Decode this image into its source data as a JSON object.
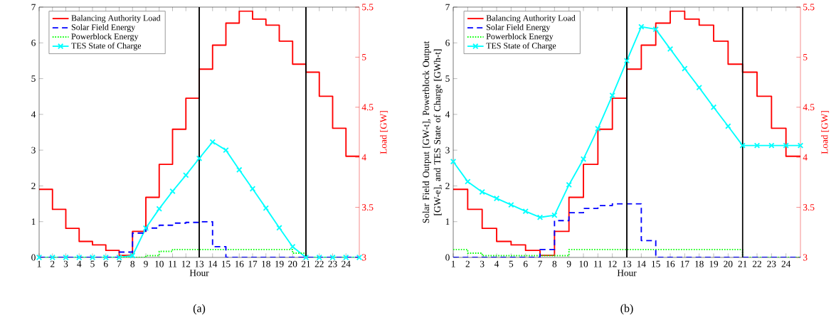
{
  "chart_data": [
    {
      "type": "step",
      "xlabel": "Hour",
      "y2label": "Load [GW]",
      "annotations": [
        "(a)"
      ],
      "x": [
        1,
        2,
        3,
        4,
        5,
        6,
        7,
        8,
        9,
        10,
        11,
        12,
        13,
        14,
        15,
        16,
        17,
        18,
        19,
        20,
        21,
        22,
        23,
        24,
        25
      ],
      "xlim": [
        1,
        25
      ],
      "xticks": [
        1,
        2,
        3,
        4,
        5,
        6,
        7,
        8,
        9,
        10,
        11,
        12,
        13,
        14,
        15,
        16,
        17,
        18,
        19,
        20,
        21,
        22,
        23,
        24
      ],
      "ylim": [
        0,
        7
      ],
      "yticks": [
        0,
        1,
        2,
        3,
        4,
        5,
        6,
        7
      ],
      "y2lim": [
        3,
        5.5
      ],
      "y2ticks": [
        3,
        3.5,
        4,
        4.5,
        5,
        5.5
      ],
      "legend": "top left",
      "ref_lines": [
        {
          "axis": "x",
          "value": 13,
          "color": "#000000"
        },
        {
          "axis": "x",
          "value": 21,
          "color": "#000000"
        }
      ],
      "series": [
        {
          "name": "Balancing Authority Load",
          "axis": "y2",
          "color": "#ff0000",
          "line_style": "solid",
          "values": [
            3.68,
            3.48,
            3.29,
            3.16,
            3.125,
            3.07,
            3.02,
            3.26,
            3.6,
            3.93,
            4.28,
            4.59,
            4.88,
            5.12,
            5.34,
            5.46,
            5.38,
            5.32,
            5.16,
            4.93,
            4.85,
            4.61,
            4.29,
            4.01,
            4.01
          ]
        },
        {
          "name": "Solar Field Energy",
          "color": "#0000ff",
          "line_style": "dashed",
          "values": [
            0,
            0,
            0,
            0,
            0,
            0,
            0.15,
            0.68,
            0.82,
            0.9,
            0.96,
            0.98,
            1.0,
            0.3,
            0,
            0,
            0,
            0,
            0,
            0,
            0,
            0,
            0,
            0,
            0
          ]
        },
        {
          "name": "Powerblock Energy",
          "color": "#00ff00",
          "line_style": "dotted",
          "values": [
            0,
            0,
            0,
            0,
            0,
            0,
            0,
            0,
            0.05,
            0.17,
            0.22,
            0.22,
            0.22,
            0.22,
            0.22,
            0.22,
            0.22,
            0.22,
            0.22,
            0.12,
            0,
            0,
            0,
            0,
            0
          ]
        },
        {
          "name": "TES State of Charge",
          "type": "line",
          "color": "#00ffff",
          "line_style": "solid",
          "marker": "cross",
          "values": [
            0,
            0,
            0,
            0,
            0,
            0,
            0,
            0.05,
            0.82,
            1.36,
            1.85,
            2.3,
            2.77,
            3.23,
            3.0,
            2.45,
            1.92,
            1.38,
            0.83,
            0.3,
            0,
            0,
            0,
            0,
            0
          ]
        }
      ]
    },
    {
      "type": "step",
      "xlabel": "Hour",
      "ylabel": "Solar Field Output [GW-t], Powerblock Output [GW-e], and TES State of Charge [GWh-t]",
      "y2label": "Load [GW]",
      "annotations": [
        "(b)"
      ],
      "x": [
        1,
        2,
        3,
        4,
        5,
        6,
        7,
        8,
        9,
        10,
        11,
        12,
        13,
        14,
        15,
        16,
        17,
        18,
        19,
        20,
        21,
        22,
        23,
        24,
        25
      ],
      "xlim": [
        1,
        25
      ],
      "xticks": [
        1,
        2,
        3,
        4,
        5,
        6,
        7,
        8,
        9,
        10,
        11,
        12,
        13,
        14,
        15,
        16,
        17,
        18,
        19,
        20,
        21,
        22,
        23,
        24
      ],
      "ylim": [
        0,
        7
      ],
      "yticks": [
        0,
        1,
        2,
        3,
        4,
        5,
        6,
        7
      ],
      "y2lim": [
        3,
        5.5
      ],
      "y2ticks": [
        3,
        3.5,
        4,
        4.5,
        5,
        5.5
      ],
      "legend": "top left",
      "ref_lines": [
        {
          "axis": "x",
          "value": 13,
          "color": "#000000"
        },
        {
          "axis": "x",
          "value": 21,
          "color": "#000000"
        }
      ],
      "series": [
        {
          "name": "Balancing Authority Load",
          "axis": "y2",
          "color": "#ff0000",
          "line_style": "solid",
          "values": [
            3.68,
            3.48,
            3.29,
            3.16,
            3.125,
            3.07,
            3.02,
            3.26,
            3.6,
            3.93,
            4.28,
            4.59,
            4.88,
            5.12,
            5.34,
            5.46,
            5.38,
            5.32,
            5.16,
            4.93,
            4.85,
            4.61,
            4.29,
            4.01,
            4.01
          ]
        },
        {
          "name": "Solar Field Energy",
          "color": "#0000ff",
          "line_style": "dashed",
          "values": [
            0,
            0,
            0,
            0,
            0,
            0,
            0.22,
            1.03,
            1.25,
            1.37,
            1.45,
            1.5,
            1.5,
            0.47,
            0,
            0,
            0,
            0,
            0,
            0,
            0,
            0,
            0,
            0,
            0
          ]
        },
        {
          "name": "Powerblock Energy",
          "color": "#00ff00",
          "line_style": "dotted",
          "values": [
            0.22,
            0.12,
            0.05,
            0.05,
            0.05,
            0.05,
            0.05,
            0.05,
            0.22,
            0.22,
            0.22,
            0.22,
            0.22,
            0.22,
            0.22,
            0.22,
            0.22,
            0.22,
            0.22,
            0.22,
            0,
            0,
            0,
            0,
            0
          ]
        },
        {
          "name": "TES State of Charge",
          "type": "line",
          "color": "#00ffff",
          "line_style": "solid",
          "marker": "cross",
          "values": [
            2.68,
            2.12,
            1.83,
            1.65,
            1.47,
            1.29,
            1.12,
            1.18,
            2.03,
            2.75,
            3.6,
            4.53,
            5.5,
            6.45,
            6.38,
            5.83,
            5.28,
            4.75,
            4.2,
            3.67,
            3.13,
            3.13,
            3.13,
            3.13,
            3.13
          ]
        }
      ]
    }
  ]
}
